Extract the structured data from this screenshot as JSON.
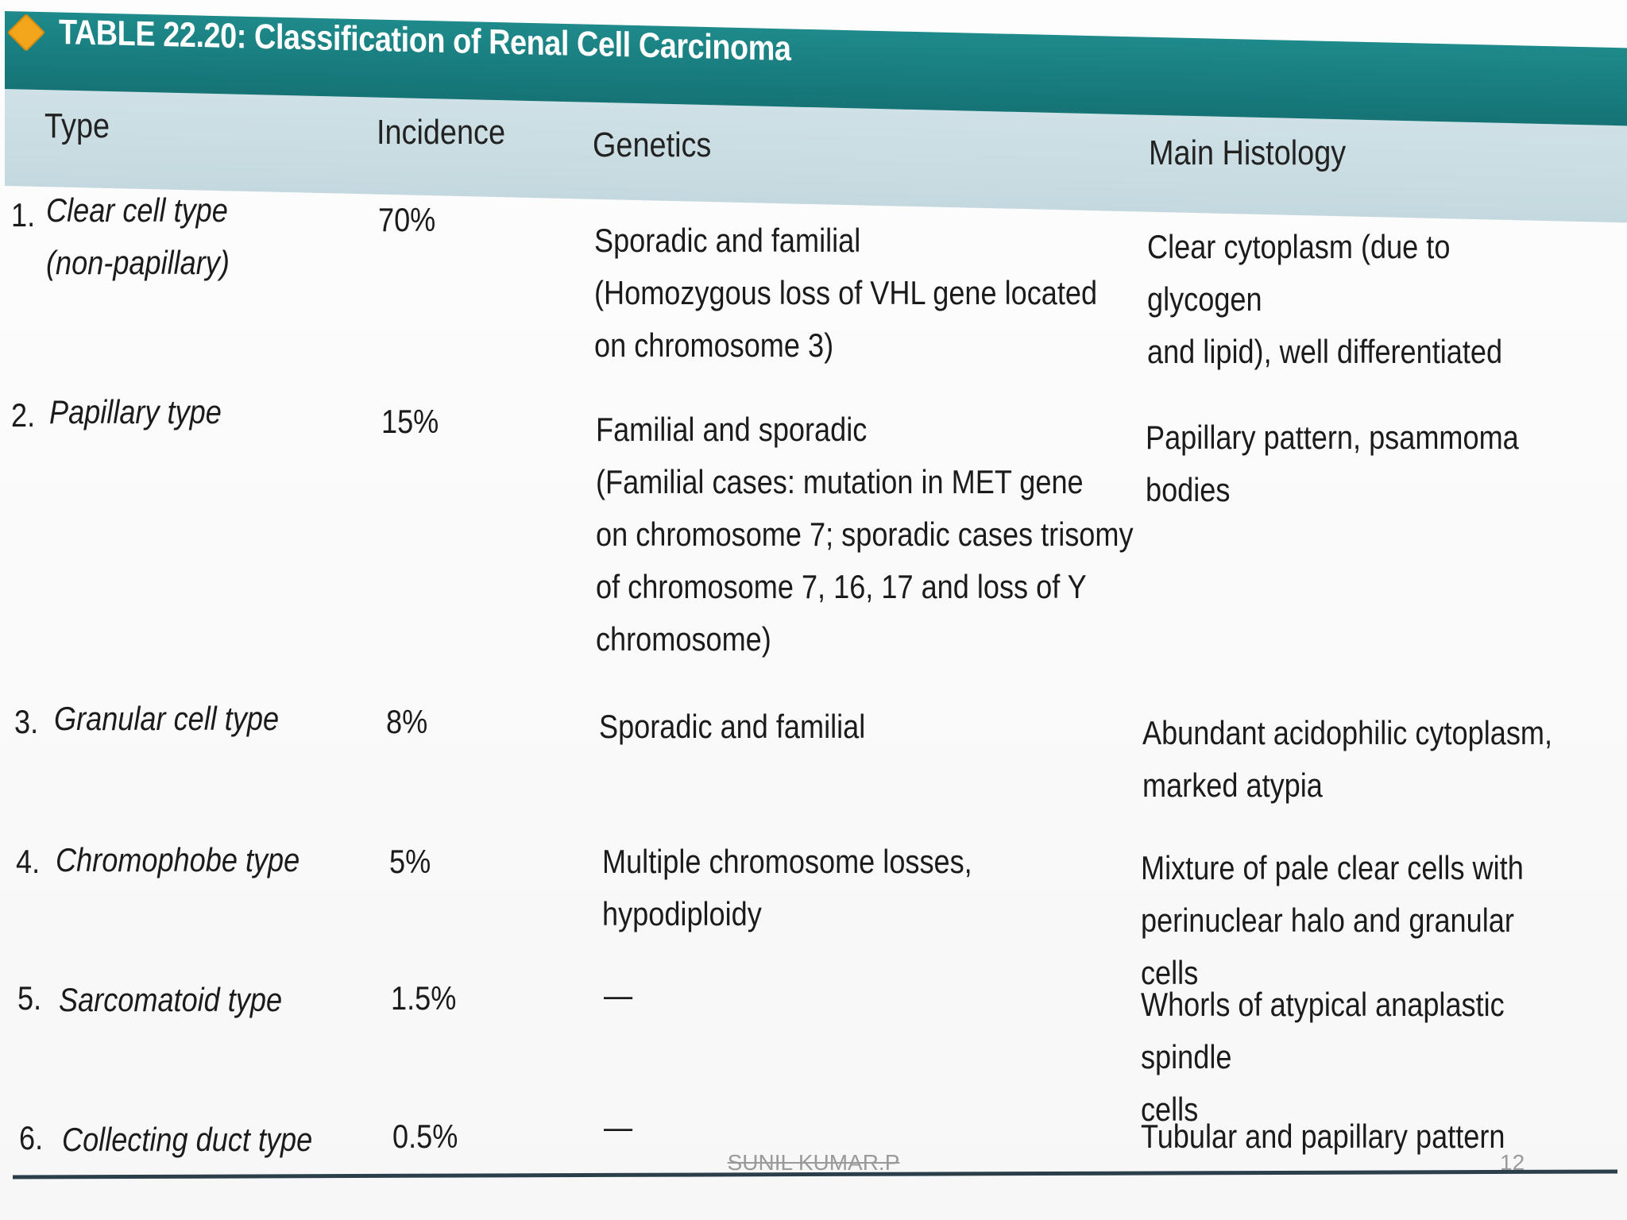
{
  "table": {
    "title": "TABLE 22.20: Classification of Renal Cell Carcinoma",
    "headers": {
      "type": "Type",
      "incidence": "Incidence",
      "genetics": "Genetics",
      "histology": "Main Histology"
    },
    "rows": [
      {
        "number": "1.",
        "type_lines": [
          "Clear cell type",
          "(non-papillary)"
        ],
        "incidence": "70%",
        "genetics_lines": [
          "Sporadic and familial",
          "(Homozygous loss of VHL gene located",
          "on chromosome 3)"
        ],
        "histology_lines": [
          "Clear cytoplasm (due to glycogen",
          "and lipid), well differentiated"
        ]
      },
      {
        "number": "2.",
        "type_lines": [
          "Papillary type"
        ],
        "incidence": "15%",
        "genetics_lines": [
          "Familial and sporadic",
          "(Familial cases: mutation in MET gene",
          "on chromosome 7; sporadic cases trisomy",
          "of chromosome 7, 16, 17 and loss of Y",
          "chromosome)"
        ],
        "histology_lines": [
          "Papillary pattern, psammoma bodies"
        ]
      },
      {
        "number": "3.",
        "type_lines": [
          "Granular cell type"
        ],
        "incidence": "8%",
        "genetics_lines": [
          "Sporadic and familial"
        ],
        "histology_lines": [
          "Abundant acidophilic cytoplasm,",
          "marked atypia"
        ]
      },
      {
        "number": "4.",
        "type_lines": [
          "Chromophobe type"
        ],
        "incidence": "5%",
        "genetics_lines": [
          "Multiple chromosome losses,",
          "hypodiploidy"
        ],
        "histology_lines": [
          "Mixture of pale clear cells with",
          "perinuclear halo and granular cells"
        ]
      },
      {
        "number": "5.",
        "type_lines": [
          "Sarcomatoid type"
        ],
        "incidence": "1.5%",
        "genetics_lines": [
          "—"
        ],
        "histology_lines": [
          "Whorls of atypical anaplastic spindle",
          "cells"
        ]
      },
      {
        "number": "6.",
        "type_lines": [
          "Collecting duct type"
        ],
        "incidence": "0.5%",
        "genetics_lines": [
          "—"
        ],
        "histology_lines": [
          "Tubular and papillary pattern"
        ]
      }
    ]
  },
  "footer": {
    "author": "SUNIL KUMAR.P",
    "page_number": "12"
  },
  "colors": {
    "title_band": "#1a8083",
    "header_band": "#c8dce2",
    "accent_diamond": "#f3a51c",
    "rule": "#2b3f4a"
  }
}
